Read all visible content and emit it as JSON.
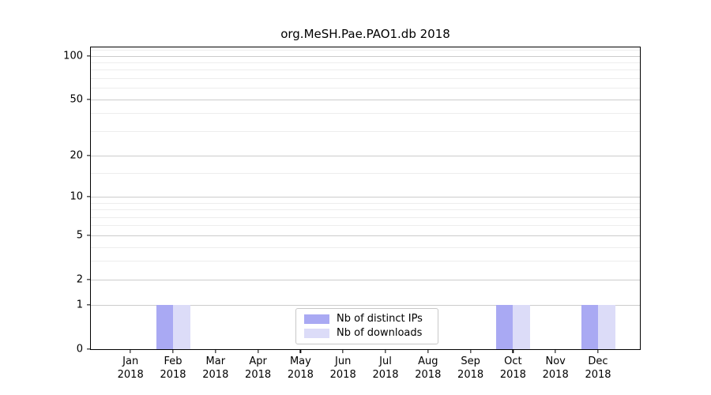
{
  "chart_data": {
    "type": "bar",
    "title": "org.MeSH.Pae.PAO1.db 2018",
    "categories": [
      "Jan 2018",
      "Feb 2018",
      "Mar 2018",
      "Apr 2018",
      "May 2018",
      "Jun 2018",
      "Jul 2018",
      "Aug 2018",
      "Sep 2018",
      "Oct 2018",
      "Nov 2018",
      "Dec 2018"
    ],
    "series": [
      {
        "name": "Nb of distinct IPs",
        "color": "#a9a9f3",
        "values": [
          0,
          1,
          0,
          0,
          0,
          0,
          0,
          0,
          0,
          1,
          0,
          1
        ]
      },
      {
        "name": "Nb of downloads",
        "color": "#dcdcf8",
        "values": [
          0,
          1,
          0,
          0,
          0,
          0,
          0,
          0,
          0,
          1,
          0,
          1
        ]
      }
    ],
    "y_axis": {
      "scale": "log1p",
      "major_ticks": [
        0,
        1,
        2,
        5,
        10,
        20,
        50,
        100
      ],
      "minor_ticks": [
        3,
        4,
        6,
        7,
        8,
        9,
        15,
        30,
        40,
        60,
        70,
        80,
        90,
        110
      ],
      "ylim": [
        0,
        114
      ]
    },
    "xlabel": "",
    "ylabel": "",
    "grid": "on",
    "legend_position": "lower center inside",
    "colors": {
      "major_grid": "#cccccc",
      "minor_grid": "#ededed",
      "axis": "#000000",
      "background": "#ffffff"
    }
  }
}
